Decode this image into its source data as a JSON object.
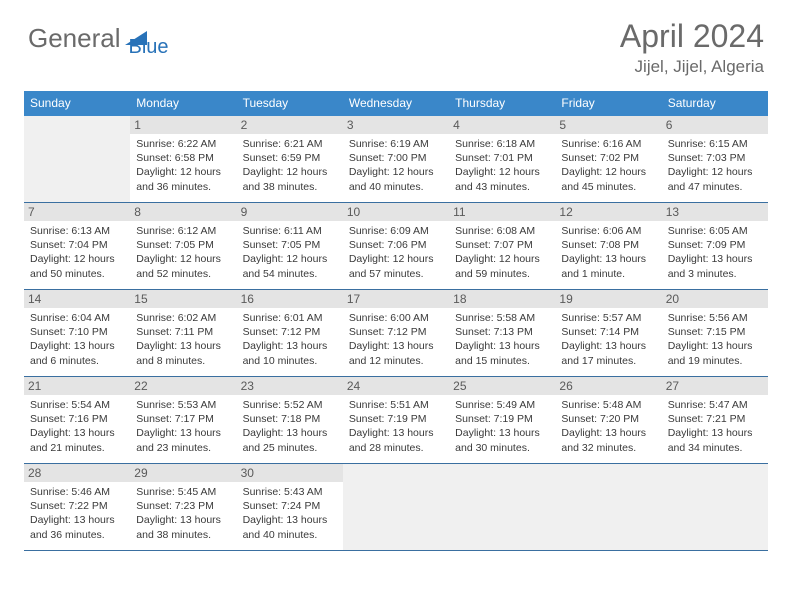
{
  "logo": {
    "text1": "General",
    "text2": "Blue",
    "color1": "#6a6a6a",
    "color2": "#2872b8"
  },
  "title": "April 2024",
  "location": "Jijel, Jijel, Algeria",
  "colors": {
    "header_bg": "#3a87c9",
    "header_fg": "#ffffff",
    "daynum_bg": "#e4e4e4",
    "daynum_fg": "#5a5a5a",
    "text": "#3a3a3a",
    "row_border": "#3a6fa0",
    "empty_bg": "#f0f0f0"
  },
  "weekdays": [
    "Sunday",
    "Monday",
    "Tuesday",
    "Wednesday",
    "Thursday",
    "Friday",
    "Saturday"
  ],
  "weeks": [
    [
      {
        "empty": true
      },
      {
        "n": "1",
        "sr": "6:22 AM",
        "ss": "6:58 PM",
        "dl": "12 hours and 36 minutes."
      },
      {
        "n": "2",
        "sr": "6:21 AM",
        "ss": "6:59 PM",
        "dl": "12 hours and 38 minutes."
      },
      {
        "n": "3",
        "sr": "6:19 AM",
        "ss": "7:00 PM",
        "dl": "12 hours and 40 minutes."
      },
      {
        "n": "4",
        "sr": "6:18 AM",
        "ss": "7:01 PM",
        "dl": "12 hours and 43 minutes."
      },
      {
        "n": "5",
        "sr": "6:16 AM",
        "ss": "7:02 PM",
        "dl": "12 hours and 45 minutes."
      },
      {
        "n": "6",
        "sr": "6:15 AM",
        "ss": "7:03 PM",
        "dl": "12 hours and 47 minutes."
      }
    ],
    [
      {
        "n": "7",
        "sr": "6:13 AM",
        "ss": "7:04 PM",
        "dl": "12 hours and 50 minutes."
      },
      {
        "n": "8",
        "sr": "6:12 AM",
        "ss": "7:05 PM",
        "dl": "12 hours and 52 minutes."
      },
      {
        "n": "9",
        "sr": "6:11 AM",
        "ss": "7:05 PM",
        "dl": "12 hours and 54 minutes."
      },
      {
        "n": "10",
        "sr": "6:09 AM",
        "ss": "7:06 PM",
        "dl": "12 hours and 57 minutes."
      },
      {
        "n": "11",
        "sr": "6:08 AM",
        "ss": "7:07 PM",
        "dl": "12 hours and 59 minutes."
      },
      {
        "n": "12",
        "sr": "6:06 AM",
        "ss": "7:08 PM",
        "dl": "13 hours and 1 minute."
      },
      {
        "n": "13",
        "sr": "6:05 AM",
        "ss": "7:09 PM",
        "dl": "13 hours and 3 minutes."
      }
    ],
    [
      {
        "n": "14",
        "sr": "6:04 AM",
        "ss": "7:10 PM",
        "dl": "13 hours and 6 minutes."
      },
      {
        "n": "15",
        "sr": "6:02 AM",
        "ss": "7:11 PM",
        "dl": "13 hours and 8 minutes."
      },
      {
        "n": "16",
        "sr": "6:01 AM",
        "ss": "7:12 PM",
        "dl": "13 hours and 10 minutes."
      },
      {
        "n": "17",
        "sr": "6:00 AM",
        "ss": "7:12 PM",
        "dl": "13 hours and 12 minutes."
      },
      {
        "n": "18",
        "sr": "5:58 AM",
        "ss": "7:13 PM",
        "dl": "13 hours and 15 minutes."
      },
      {
        "n": "19",
        "sr": "5:57 AM",
        "ss": "7:14 PM",
        "dl": "13 hours and 17 minutes."
      },
      {
        "n": "20",
        "sr": "5:56 AM",
        "ss": "7:15 PM",
        "dl": "13 hours and 19 minutes."
      }
    ],
    [
      {
        "n": "21",
        "sr": "5:54 AM",
        "ss": "7:16 PM",
        "dl": "13 hours and 21 minutes."
      },
      {
        "n": "22",
        "sr": "5:53 AM",
        "ss": "7:17 PM",
        "dl": "13 hours and 23 minutes."
      },
      {
        "n": "23",
        "sr": "5:52 AM",
        "ss": "7:18 PM",
        "dl": "13 hours and 25 minutes."
      },
      {
        "n": "24",
        "sr": "5:51 AM",
        "ss": "7:19 PM",
        "dl": "13 hours and 28 minutes."
      },
      {
        "n": "25",
        "sr": "5:49 AM",
        "ss": "7:19 PM",
        "dl": "13 hours and 30 minutes."
      },
      {
        "n": "26",
        "sr": "5:48 AM",
        "ss": "7:20 PM",
        "dl": "13 hours and 32 minutes."
      },
      {
        "n": "27",
        "sr": "5:47 AM",
        "ss": "7:21 PM",
        "dl": "13 hours and 34 minutes."
      }
    ],
    [
      {
        "n": "28",
        "sr": "5:46 AM",
        "ss": "7:22 PM",
        "dl": "13 hours and 36 minutes."
      },
      {
        "n": "29",
        "sr": "5:45 AM",
        "ss": "7:23 PM",
        "dl": "13 hours and 38 minutes."
      },
      {
        "n": "30",
        "sr": "5:43 AM",
        "ss": "7:24 PM",
        "dl": "13 hours and 40 minutes."
      },
      {
        "empty": true
      },
      {
        "empty": true
      },
      {
        "empty": true
      },
      {
        "empty": true
      }
    ]
  ],
  "labels": {
    "sunrise_prefix": "Sunrise: ",
    "sunset_prefix": "Sunset: ",
    "daylight_prefix": "Daylight: "
  }
}
